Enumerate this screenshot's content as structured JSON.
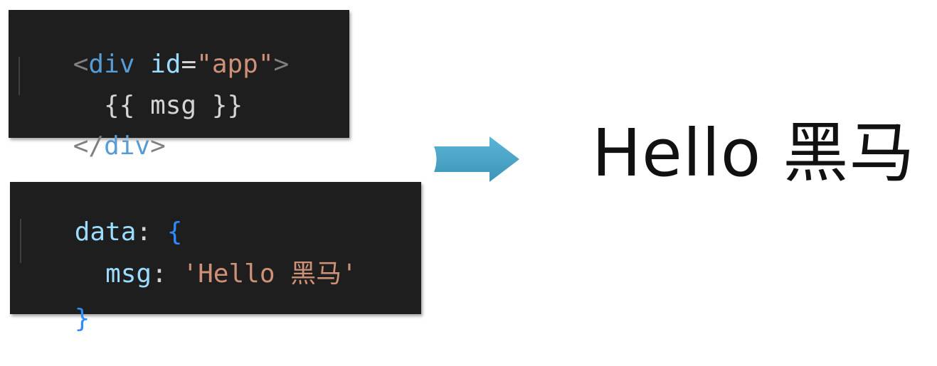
{
  "template_code": {
    "line1": {
      "open_bracket": "<",
      "tag": "div",
      "space": " ",
      "attr_name": "id",
      "equals": "=",
      "attr_value": "\"app\"",
      "close_bracket": ">"
    },
    "line2": {
      "text": "  {{ msg }}"
    },
    "line3": {
      "open_bracket": "</",
      "tag": "div",
      "close_bracket": ">"
    }
  },
  "data_code": {
    "line1": {
      "key": "data",
      "colon": ": ",
      "brace": "{"
    },
    "line2": {
      "indent": "  ",
      "key": "msg",
      "colon": ": ",
      "value": "'Hello 黑马'"
    },
    "line3": {
      "brace": "}"
    }
  },
  "arrow": {
    "color": "#4aa6c8",
    "icon": "right-arrow-icon"
  },
  "result": {
    "text": "Hello 黑马"
  },
  "colors": {
    "editor_background": "#1e1e1e",
    "tag": "#569cd6",
    "attribute": "#9cdcfe",
    "string": "#ce9178",
    "brace": "#2f8cff"
  }
}
